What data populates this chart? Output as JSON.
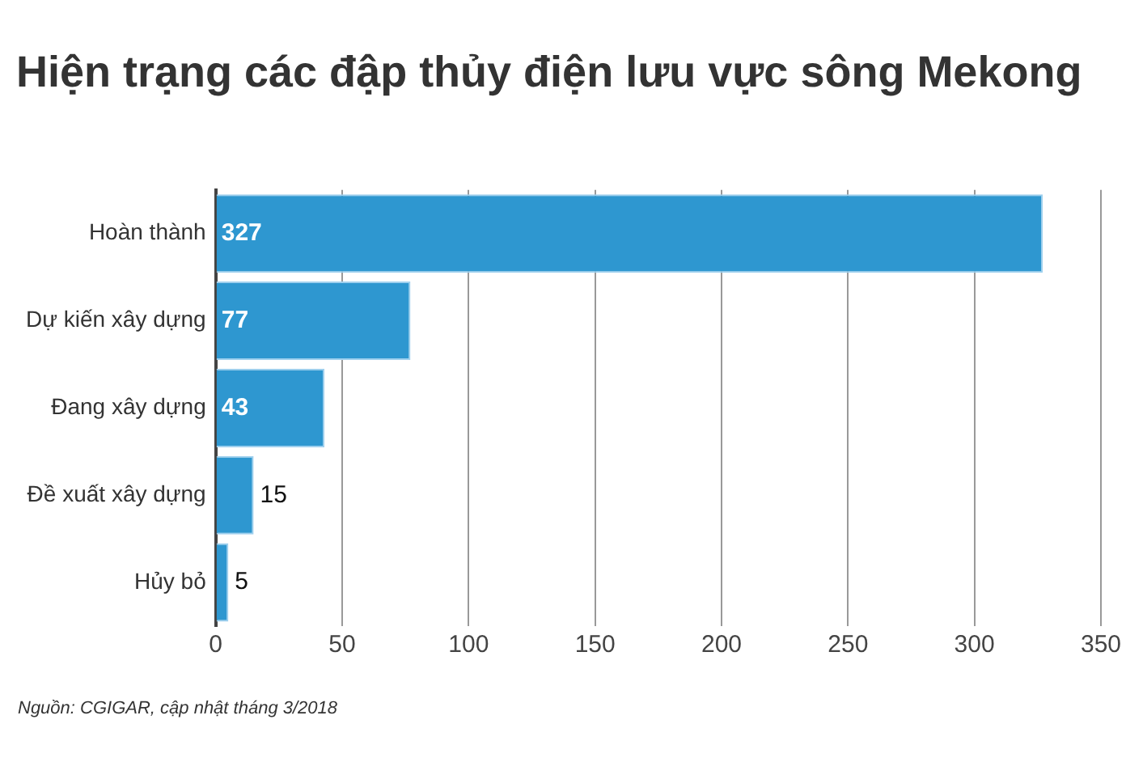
{
  "chart_data": {
    "type": "bar",
    "orientation": "horizontal",
    "title": "Hiện trạng các đập thủy điện lưu vực sông Mekong",
    "categories": [
      "Hoàn thành",
      "Dự kiến xây dựng",
      "Đang xây dựng",
      "Đề xuất xây dựng",
      "Hủy bỏ"
    ],
    "values": [
      327,
      77,
      43,
      15,
      5
    ],
    "color": "#2e97d0",
    "xlim": [
      0,
      350
    ],
    "xticks": [
      0,
      50,
      100,
      150,
      200,
      250,
      300,
      350
    ],
    "grid": "x",
    "legend": false,
    "data_labels": true,
    "annotations": [
      "Nguồn: CGIGAR, cập nhật tháng 3/2018"
    ]
  }
}
